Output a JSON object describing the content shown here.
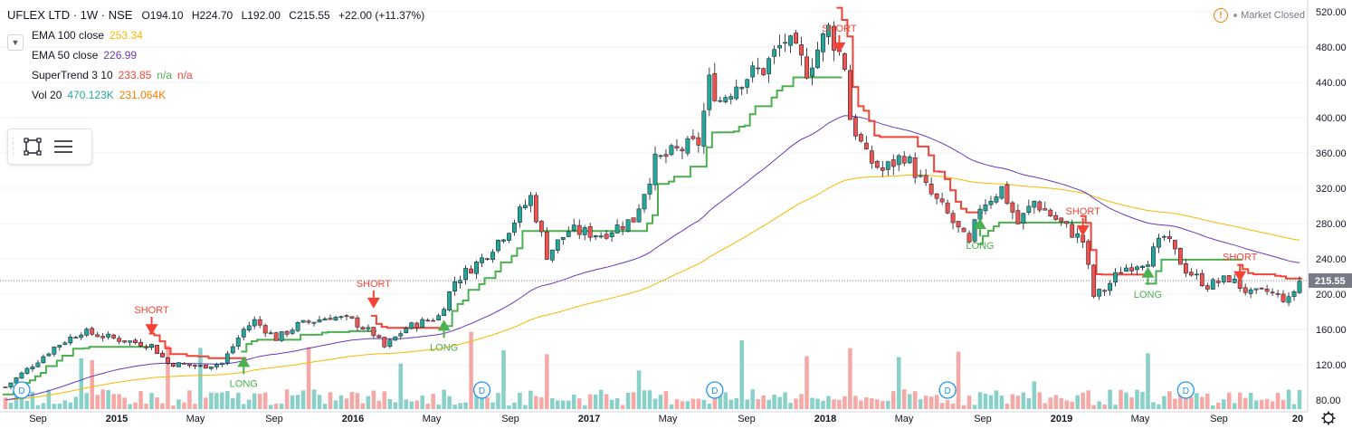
{
  "legend": {
    "symbol": "UFLEX LTD · 1W · NSE",
    "open": "O194.10",
    "high": "H224.70",
    "low": "L192.00",
    "close": "C215.55",
    "change": "+22.00 (+11.37%)",
    "indicators": [
      {
        "name": "EMA 100 close",
        "values": [
          "253.34"
        ],
        "colors": [
          "#f5b800"
        ]
      },
      {
        "name": "EMA 50 close",
        "values": [
          "226.99"
        ],
        "colors": [
          "#673ab7"
        ]
      },
      {
        "name": "SuperTrend 3 10",
        "values": [
          "233.85",
          "n/a",
          "n/a"
        ],
        "colors": [
          "#f44336",
          "#4caf50",
          "#f44336"
        ]
      },
      {
        "name": "Vol 20",
        "values": [
          "470.123K",
          "231.064K"
        ],
        "colors": [
          "#26a69a",
          "#f57c00"
        ]
      }
    ]
  },
  "market_status": "Market Closed",
  "price_axis": {
    "ticks": [
      80,
      120,
      160,
      200,
      240,
      280,
      320,
      360,
      400,
      440,
      480,
      520
    ],
    "tick_labels": [
      "80.00",
      "120.00",
      "160.00",
      "200.00",
      "240.00",
      "280.00",
      "320.00",
      "360.00",
      "400.00",
      "440.00",
      "480.00",
      "520.00"
    ],
    "current_label": "215.55",
    "current_value": 215.55
  },
  "time_axis": {
    "labels": [
      "Sep",
      "2015",
      "May",
      "Sep",
      "2016",
      "May",
      "Sep",
      "2017",
      "May",
      "Sep",
      "2018",
      "May",
      "Sep",
      "2019",
      "May",
      "Sep",
      "20"
    ],
    "years": [
      "2015",
      "2016",
      "2017",
      "2018",
      "2019",
      "20"
    ]
  },
  "signals": [
    {
      "type": "SHORT",
      "week": 27,
      "price": 158
    },
    {
      "type": "LONG",
      "week": 44,
      "price": 126
    },
    {
      "type": "SHORT",
      "week": 68,
      "price": 188
    },
    {
      "type": "LONG",
      "week": 81,
      "price": 167
    },
    {
      "type": "SHORT",
      "week": 154,
      "price": 477
    },
    {
      "type": "LONG",
      "week": 180,
      "price": 282
    },
    {
      "type": "SHORT",
      "week": 199,
      "price": 270
    },
    {
      "type": "LONG",
      "week": 211,
      "price": 227
    },
    {
      "type": "SHORT",
      "week": 228,
      "price": 218
    }
  ],
  "dividend_marker": "D",
  "dividend_weeks": [
    3,
    88,
    131,
    174,
    218
  ],
  "colors": {
    "up": "#26a69a",
    "down": "#ef5350",
    "supertrend_up": "#4caf50",
    "supertrend_down": "#f44336",
    "ema50": "#673ab7",
    "ema100": "#f5b800",
    "vol_up": "#89d1c8",
    "vol_down": "#f4a9a7",
    "grid": "#f0f3fa",
    "price_tag": "#787b86"
  },
  "chart_data": {
    "type": "candlestick",
    "timeframe": "1W",
    "ylim": [
      70,
      525
    ],
    "anchors": [
      [
        0,
        95
      ],
      [
        5,
        120
      ],
      [
        9,
        140
      ],
      [
        14,
        158
      ],
      [
        20,
        150
      ],
      [
        27,
        142
      ],
      [
        30,
        122
      ],
      [
        36,
        118
      ],
      [
        40,
        122
      ],
      [
        44,
        160
      ],
      [
        46,
        170
      ],
      [
        50,
        150
      ],
      [
        54,
        165
      ],
      [
        60,
        175
      ],
      [
        64,
        170
      ],
      [
        68,
        155
      ],
      [
        70,
        140
      ],
      [
        74,
        162
      ],
      [
        80,
        175
      ],
      [
        83,
        215
      ],
      [
        88,
        240
      ],
      [
        93,
        275
      ],
      [
        97,
        310
      ],
      [
        100,
        245
      ],
      [
        104,
        272
      ],
      [
        110,
        268
      ],
      [
        116,
        285
      ],
      [
        120,
        350
      ],
      [
        124,
        362
      ],
      [
        128,
        372
      ],
      [
        130,
        440
      ],
      [
        132,
        420
      ],
      [
        136,
        445
      ],
      [
        140,
        455
      ],
      [
        144,
        488
      ],
      [
        148,
        455
      ],
      [
        152,
        500
      ],
      [
        155,
        460
      ],
      [
        156,
        400
      ],
      [
        159,
        355
      ],
      [
        162,
        340
      ],
      [
        166,
        358
      ],
      [
        170,
        320
      ],
      [
        174,
        290
      ],
      [
        178,
        255
      ],
      [
        180,
        300
      ],
      [
        184,
        320
      ],
      [
        187,
        280
      ],
      [
        190,
        305
      ],
      [
        195,
        280
      ],
      [
        199,
        260
      ],
      [
        201,
        198
      ],
      [
        203,
        205
      ],
      [
        206,
        228
      ],
      [
        211,
        240
      ],
      [
        214,
        265
      ],
      [
        218,
        228
      ],
      [
        222,
        210
      ],
      [
        226,
        218
      ],
      [
        230,
        200
      ],
      [
        233,
        203
      ],
      [
        237,
        193
      ],
      [
        239,
        215
      ]
    ]
  }
}
